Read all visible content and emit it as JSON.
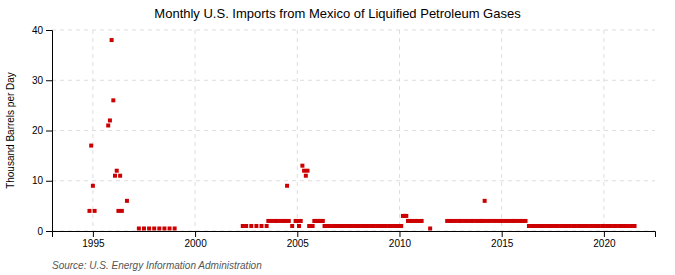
{
  "chart_data": {
    "type": "scatter",
    "title": "Monthly U.S. Imports from Mexico of Liquified Petroleum Gases",
    "y_label": "Thousand Barrels per Day",
    "annotations": [
      "Source: U.S. Energy Information Administration"
    ],
    "color": "#cc0000",
    "marker": "square",
    "grid": true,
    "xlim": [
      1993.0,
      2022.5
    ],
    "ylim": [
      0,
      40
    ],
    "xticks": [
      1995,
      2000,
      2005,
      2010,
      2015,
      2020
    ],
    "yticks": [
      0,
      10,
      20,
      30,
      40
    ],
    "x": [
      1994.833,
      1994.917,
      1995.0,
      1995.083,
      1995.75,
      1995.833,
      1995.917,
      1996.0,
      1996.083,
      1996.167,
      1996.25,
      1996.333,
      1996.417,
      1996.667,
      1997.25,
      1997.5,
      1997.75,
      1998.0,
      1998.25,
      1998.5,
      1998.75,
      1999.0,
      2002.333,
      2002.5,
      2002.75,
      2003.0,
      2003.25,
      2003.5,
      2003.583,
      2003.75,
      2003.917,
      2004.0,
      2004.167,
      2004.333,
      2004.417,
      2004.5,
      2004.583,
      2004.75,
      2004.917,
      2005.0,
      2005.083,
      2005.167,
      2005.25,
      2005.333,
      2005.417,
      2005.5,
      2005.583,
      2005.75,
      2005.833,
      2005.917,
      2006.0,
      2006.083,
      2006.167,
      2006.25,
      2006.333,
      2006.5,
      2006.583,
      2006.75,
      2006.833,
      2006.917,
      2007.0,
      2007.167,
      2007.333,
      2007.5,
      2007.583,
      2007.75,
      2007.917,
      2008.0,
      2008.167,
      2008.333,
      2008.5,
      2008.583,
      2008.75,
      2008.917,
      2009.0,
      2009.167,
      2009.333,
      2009.5,
      2009.583,
      2009.75,
      2009.917,
      2010.0,
      2010.083,
      2010.167,
      2010.25,
      2010.333,
      2010.417,
      2010.5,
      2010.583,
      2010.75,
      2010.833,
      2011.0,
      2011.083,
      2011.5,
      2012.333,
      2012.5,
      2012.583,
      2012.75,
      2012.917,
      2013.0,
      2013.167,
      2013.333,
      2013.5,
      2013.583,
      2013.75,
      2013.917,
      2014.0,
      2014.083,
      2014.167,
      2014.25,
      2014.417,
      2014.583,
      2014.75,
      2014.917,
      2015.0,
      2015.167,
      2015.333,
      2015.5,
      2015.583,
      2015.75,
      2015.917,
      2016.0,
      2016.167,
      2016.333,
      2016.5,
      2016.583,
      2016.75,
      2016.917,
      2017.0,
      2017.167,
      2017.333,
      2017.5,
      2017.583,
      2017.75,
      2017.917,
      2018.0,
      2018.167,
      2018.333,
      2018.5,
      2018.583,
      2018.75,
      2018.917,
      2019.0,
      2019.167,
      2019.333,
      2019.5,
      2019.583,
      2019.75,
      2019.917,
      2020.0,
      2020.167,
      2020.333,
      2020.5,
      2020.583,
      2020.75,
      2020.917,
      2021.0,
      2021.167,
      2021.333,
      2021.5
    ],
    "values": [
      4,
      17,
      9,
      4,
      21,
      22,
      38,
      26,
      11,
      12,
      4,
      11,
      4,
      6,
      0.5,
      0.5,
      0.5,
      0.5,
      0.5,
      0.5,
      0.5,
      0.5,
      1,
      1,
      1,
      1,
      1,
      1,
      2,
      2,
      2,
      2,
      2,
      2,
      2,
      9,
      2,
      1,
      2,
      2,
      1,
      2,
      13,
      12,
      11,
      12,
      1,
      1,
      2,
      2,
      2,
      2,
      2,
      2,
      1,
      1,
      1,
      1,
      1,
      1,
      1,
      1,
      1,
      1,
      1,
      1,
      1,
      1,
      1,
      1,
      1,
      1,
      1,
      1,
      1,
      1,
      1,
      1,
      1,
      1,
      1,
      1,
      1,
      3,
      3,
      3,
      2,
      2,
      2,
      2,
      2,
      2,
      2,
      0.5,
      2,
      2,
      2,
      2,
      2,
      2,
      2,
      2,
      2,
      2,
      2,
      2,
      2,
      2,
      6,
      2,
      2,
      2,
      2,
      2,
      2,
      2,
      2,
      2,
      2,
      2,
      2,
      2,
      2,
      1,
      1,
      1,
      1,
      1,
      1,
      1,
      1,
      1,
      1,
      1,
      1,
      1,
      1,
      1,
      1,
      1,
      1,
      1,
      1,
      1,
      1,
      1,
      1,
      1,
      1,
      1,
      1,
      1,
      1,
      1,
      1,
      1,
      1,
      1,
      1,
      1
    ]
  }
}
